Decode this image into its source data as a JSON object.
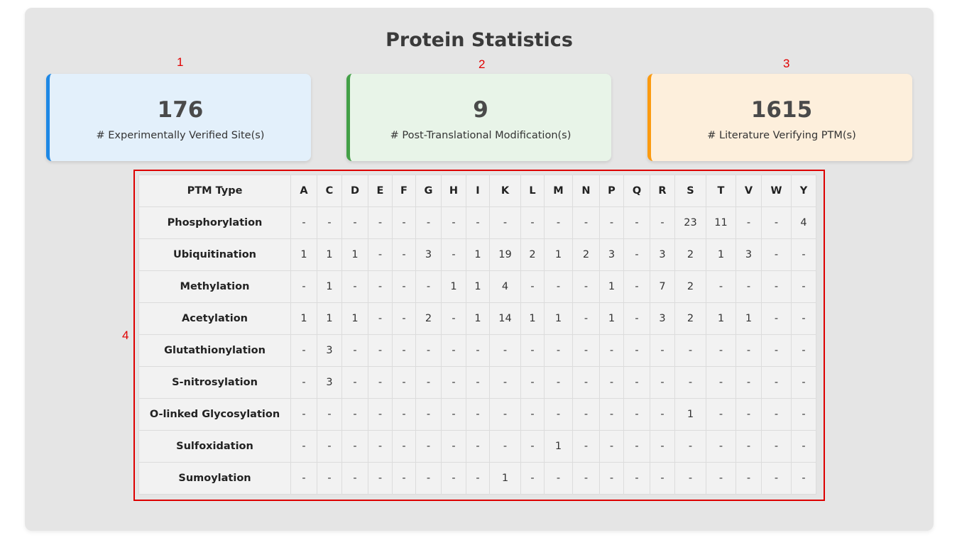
{
  "title": "Protein Statistics",
  "markers": [
    "1",
    "2",
    "3",
    "4"
  ],
  "cards": [
    {
      "value": "176",
      "label": "# Experimentally Verified Site(s)",
      "accent": "#1e88e5"
    },
    {
      "value": "9",
      "label": "# Post-Translational Modification(s)",
      "accent": "#43a047"
    },
    {
      "value": "1615",
      "label": "# Literature Verifying PTM(s)",
      "accent": "#fb9a10"
    }
  ],
  "table": {
    "headers": [
      "PTM Type",
      "A",
      "C",
      "D",
      "E",
      "F",
      "G",
      "H",
      "I",
      "K",
      "L",
      "M",
      "N",
      "P",
      "Q",
      "R",
      "S",
      "T",
      "V",
      "W",
      "Y"
    ],
    "rows": [
      [
        "Phosphorylation",
        "-",
        "-",
        "-",
        "-",
        "-",
        "-",
        "-",
        "-",
        "-",
        "-",
        "-",
        "-",
        "-",
        "-",
        "-",
        "23",
        "11",
        "-",
        "-",
        "4"
      ],
      [
        "Ubiquitination",
        "1",
        "1",
        "1",
        "-",
        "-",
        "3",
        "-",
        "1",
        "19",
        "2",
        "1",
        "2",
        "3",
        "-",
        "3",
        "2",
        "1",
        "3",
        "-",
        "-"
      ],
      [
        "Methylation",
        "-",
        "1",
        "-",
        "-",
        "-",
        "-",
        "1",
        "1",
        "4",
        "-",
        "-",
        "-",
        "1",
        "-",
        "7",
        "2",
        "-",
        "-",
        "-",
        "-"
      ],
      [
        "Acetylation",
        "1",
        "1",
        "1",
        "-",
        "-",
        "2",
        "-",
        "1",
        "14",
        "1",
        "1",
        "-",
        "1",
        "-",
        "3",
        "2",
        "1",
        "1",
        "-",
        "-"
      ],
      [
        "Glutathionylation",
        "-",
        "3",
        "-",
        "-",
        "-",
        "-",
        "-",
        "-",
        "-",
        "-",
        "-",
        "-",
        "-",
        "-",
        "-",
        "-",
        "-",
        "-",
        "-",
        "-"
      ],
      [
        "S-nitrosylation",
        "-",
        "3",
        "-",
        "-",
        "-",
        "-",
        "-",
        "-",
        "-",
        "-",
        "-",
        "-",
        "-",
        "-",
        "-",
        "-",
        "-",
        "-",
        "-",
        "-"
      ],
      [
        "O-linked Glycosylation",
        "-",
        "-",
        "-",
        "-",
        "-",
        "-",
        "-",
        "-",
        "-",
        "-",
        "-",
        "-",
        "-",
        "-",
        "-",
        "1",
        "-",
        "-",
        "-",
        "-"
      ],
      [
        "Sulfoxidation",
        "-",
        "-",
        "-",
        "-",
        "-",
        "-",
        "-",
        "-",
        "-",
        "-",
        "1",
        "-",
        "-",
        "-",
        "-",
        "-",
        "-",
        "-",
        "-",
        "-"
      ],
      [
        "Sumoylation",
        "-",
        "-",
        "-",
        "-",
        "-",
        "-",
        "-",
        "-",
        "1",
        "-",
        "-",
        "-",
        "-",
        "-",
        "-",
        "-",
        "-",
        "-",
        "-",
        "-"
      ]
    ]
  }
}
